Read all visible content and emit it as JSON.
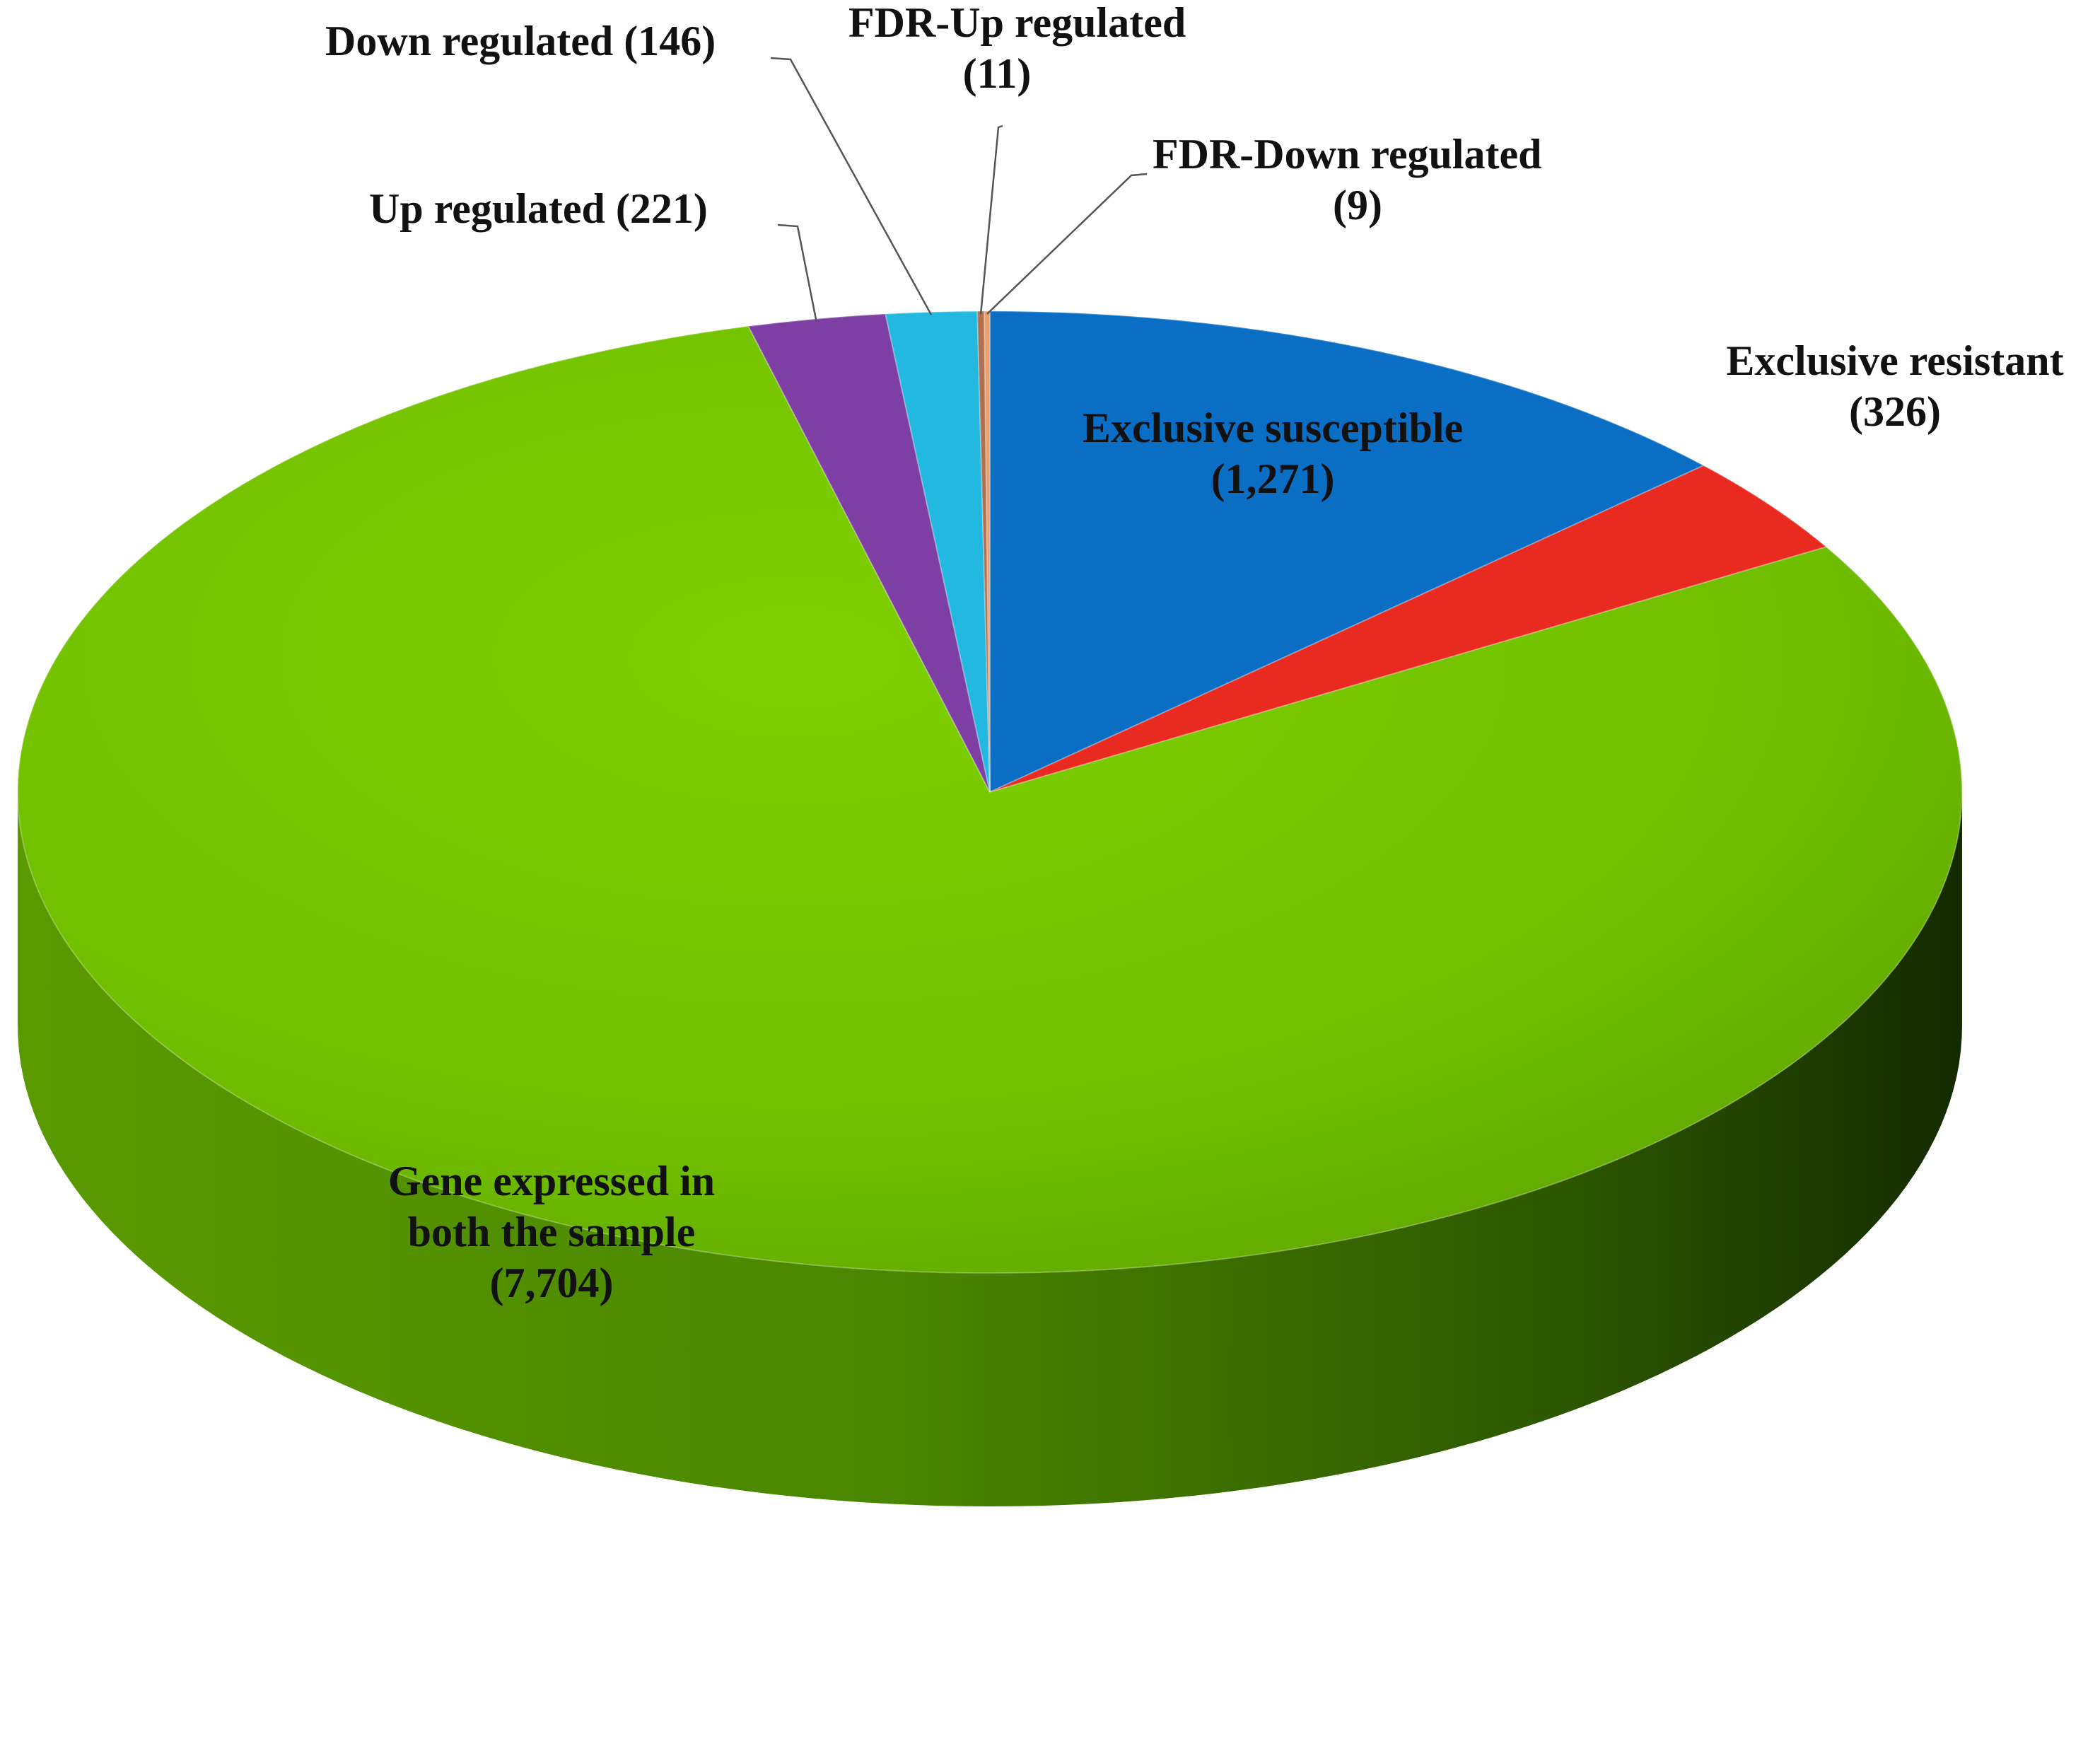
{
  "chart_data": {
    "type": "pie",
    "style": "3d",
    "slices": [
      {
        "key": "exclusive-susceptible",
        "label_lines": [
          "Exclusive susceptible",
          "(1,271)"
        ],
        "value": 1271,
        "color": "#0a6fc4",
        "label_placement": "inside"
      },
      {
        "key": "exclusive-resistant",
        "label_lines": [
          "Exclusive resistant",
          "(326)"
        ],
        "value": 326,
        "color": "#e82a20",
        "label_placement": "outside-right"
      },
      {
        "key": "gene-expressed-both",
        "label_lines": [
          "Gene expressed in",
          "both the sample",
          "(7,704)"
        ],
        "value": 7704,
        "color": "#74c400",
        "label_placement": "inside-lower"
      },
      {
        "key": "up-regulated",
        "label_lines": [
          "Up regulated  (221)"
        ],
        "value": 221,
        "color": "#7d3fa3",
        "label_placement": "callout"
      },
      {
        "key": "down-regulated",
        "label_lines": [
          "Down regulated (146)"
        ],
        "value": 146,
        "color": "#22b8e0",
        "label_placement": "callout"
      },
      {
        "key": "fdr-up-regulated",
        "label_lines": [
          "FDR-Up regulated",
          "(11)"
        ],
        "value": 11,
        "color": "#b07050",
        "label_placement": "callout"
      },
      {
        "key": "fdr-down-regulated",
        "label_lines": [
          "FDR-Down regulated",
          "(9)"
        ],
        "value": 9,
        "color": "#e8a070",
        "label_placement": "callout"
      }
    ],
    "title": "",
    "legend": "none"
  }
}
